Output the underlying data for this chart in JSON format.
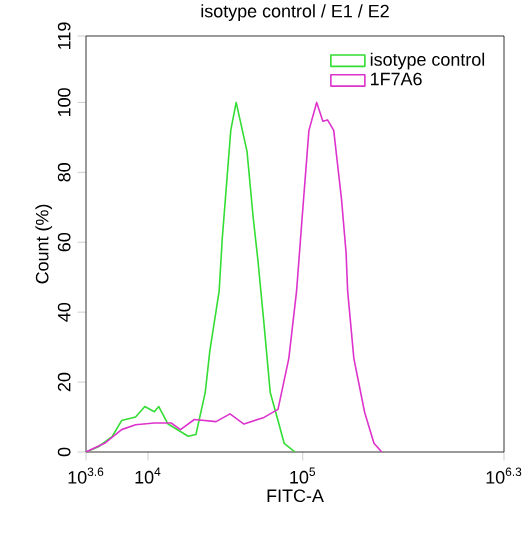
{
  "chart_data": {
    "type": "line",
    "title": "isotype control / E1 / E2",
    "xlabel": "FITC-A",
    "ylabel": "Count (%)",
    "log": "x",
    "legend": "top right",
    "xlim": [
      3981,
      1995262
    ],
    "ylim": [
      0,
      119
    ],
    "xticks": [
      {
        "value": 3981,
        "label": "10$^{3.6}$"
      },
      {
        "value": 10000,
        "label": "10$^{4}$"
      },
      {
        "value": 100000,
        "label": "10$^{5}$"
      },
      {
        "value": 1995262,
        "label": "10$^{6.3}$"
      }
    ],
    "yticks": [
      0,
      20,
      40,
      60,
      80,
      100,
      119
    ],
    "series": [
      {
        "name": "isotype control",
        "color": "#33dd33",
        "x": [
          3981,
          4790,
          5890,
          6760,
          8320,
          9550,
          11000,
          11750,
          13490,
          18200,
          20420,
          23440,
          25120,
          28840,
          30200,
          34280,
          37150,
          43650,
          47860,
          51290,
          56230,
          61660,
          69180,
          75860,
          89130
        ],
        "values": [
          0,
          1.5,
          4.5,
          9,
          10,
          13,
          11.5,
          13,
          8,
          4.5,
          5,
          17,
          29,
          46,
          61,
          92,
          100,
          86,
          67,
          55,
          36.5,
          17,
          9,
          2.5,
          0
        ]
      },
      {
        "name": "1F7A6",
        "color": "#dd33cc",
        "x": [
          3981,
          5250,
          6760,
          8320,
          11000,
          14130,
          16220,
          19950,
          27540,
          33880,
          41690,
          56230,
          69180,
          81280,
          91200,
          99080,
          109600,
          123000,
          134900,
          144500,
          158500,
          177800,
          190500,
          195000,
          213800,
          251200,
          288400,
          323600
        ],
        "values": [
          0,
          2.5,
          6.4,
          7.8,
          8.3,
          8.3,
          6.4,
          9.3,
          8.7,
          10.9,
          8,
          9.9,
          12.2,
          26.8,
          46,
          67,
          92,
          100,
          94.6,
          95,
          92,
          72.5,
          57,
          46,
          26.8,
          11.3,
          2.5,
          0
        ]
      }
    ]
  }
}
